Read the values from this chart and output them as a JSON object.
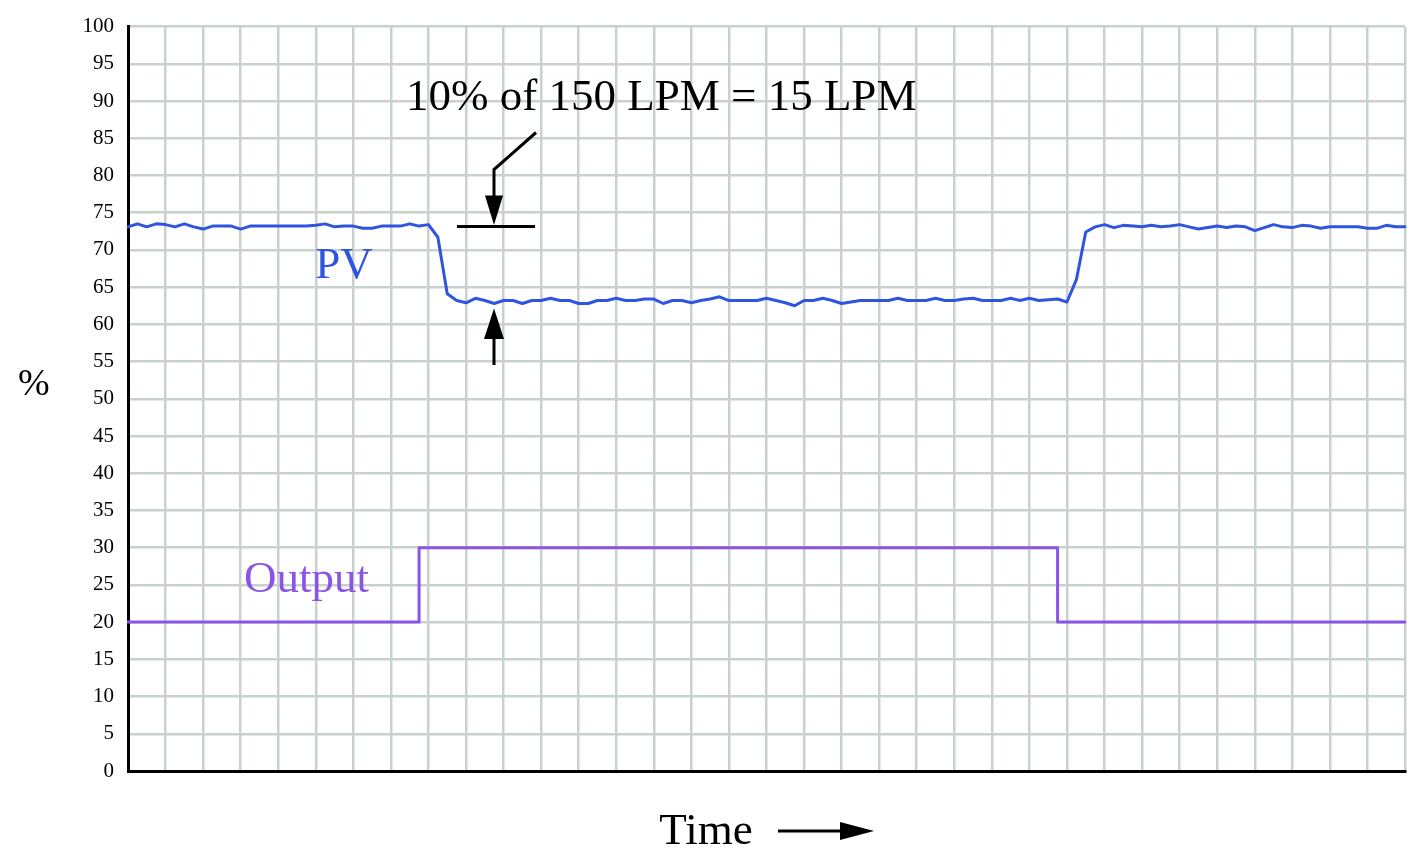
{
  "chart_data": {
    "type": "line",
    "xlabel": "Time",
    "ylabel": "%",
    "ylim": [
      0,
      100
    ],
    "yticks": [
      0,
      5,
      10,
      15,
      20,
      25,
      30,
      35,
      40,
      45,
      50,
      55,
      60,
      65,
      70,
      75,
      80,
      85,
      90,
      95,
      100
    ],
    "grid": true,
    "annotations": [
      "10% of 150 LPM = 15 LPM"
    ],
    "categories": [
      null,
      null,
      null,
      null,
      null,
      null,
      null,
      null,
      null,
      null,
      null,
      null,
      null,
      null,
      null,
      null,
      null,
      null,
      null,
      null,
      null,
      null,
      null,
      null,
      null,
      null,
      null,
      null,
      null,
      null,
      null,
      null,
      null,
      null,
      null,
      null,
      null,
      null,
      null,
      null,
      null,
      null,
      null,
      null,
      null,
      null,
      null,
      null,
      null,
      null,
      null,
      null,
      null,
      null,
      null,
      null,
      null,
      null,
      null,
      null,
      null,
      null,
      null,
      null,
      null,
      null,
      null,
      null,
      null,
      null,
      null,
      null,
      null,
      null,
      null,
      null,
      null,
      null,
      null,
      null,
      null,
      null,
      null,
      null,
      null,
      null,
      null,
      null,
      null,
      null,
      null,
      null,
      null,
      null,
      null,
      null,
      null,
      null,
      null,
      null,
      null,
      null,
      null,
      null,
      null,
      null,
      null,
      null,
      null,
      null,
      null,
      null,
      null,
      null,
      null,
      null,
      null,
      null,
      null,
      null,
      null,
      null,
      null,
      null,
      null,
      null,
      null,
      null,
      null,
      null,
      null,
      null,
      null,
      null,
      null,
      null,
      null
    ],
    "series": [
      {
        "name": "PV",
        "type": "line",
        "color": "#2f55e0",
        "values": [
          73.1,
          73.5,
          73.1,
          73.5,
          73.4,
          73.1,
          73.5,
          73.1,
          72.8,
          73.2,
          73.2,
          73.2,
          72.8,
          73.2,
          73.2,
          73.2,
          73.2,
          73.2,
          73.2,
          73.2,
          73.3,
          73.5,
          73.1,
          73.2,
          73.2,
          72.9,
          72.9,
          73.2,
          73.2,
          73.2,
          73.5,
          73.2,
          73.4,
          71.7,
          64.1,
          63.2,
          62.9,
          63.5,
          63.2,
          62.8,
          63.2,
          63.2,
          62.8,
          63.2,
          63.2,
          63.5,
          63.2,
          63.2,
          62.8,
          62.8,
          63.2,
          63.2,
          63.5,
          63.2,
          63.2,
          63.4,
          63.4,
          62.8,
          63.2,
          63.2,
          62.9,
          63.2,
          63.4,
          63.7,
          63.2,
          63.2,
          63.2,
          63.2,
          63.5,
          63.2,
          62.9,
          62.5,
          63.2,
          63.2,
          63.5,
          63.2,
          62.8,
          63.0,
          63.2,
          63.2,
          63.2,
          63.2,
          63.5,
          63.2,
          63.2,
          63.2,
          63.5,
          63.2,
          63.2,
          63.4,
          63.5,
          63.2,
          63.2,
          63.2,
          63.5,
          63.2,
          63.5,
          63.2,
          63.3,
          63.4,
          63.0,
          66,
          72.4,
          73.1,
          73.4,
          73.0,
          73.3,
          73.2,
          73.1,
          73.3,
          73.1,
          73.2,
          73.4,
          73.1,
          72.8,
          73.0,
          73.2,
          73.0,
          73.2,
          73.1,
          72.6,
          73.0,
          73.4,
          73.1,
          73.0,
          73.3,
          73.2,
          72.9,
          73.1,
          73.1,
          73.1,
          73.1,
          72.9,
          72.9,
          73.3,
          73.1,
          73.1
        ]
      },
      {
        "name": "Output",
        "type": "step",
        "color": "#8a55e6",
        "values": [
          20,
          20,
          20,
          20,
          20,
          20,
          20,
          20,
          20,
          20,
          20,
          20,
          20,
          20,
          20,
          20,
          20,
          20,
          20,
          20,
          20,
          20,
          20,
          20,
          20,
          20,
          20,
          20,
          20,
          20,
          20,
          20,
          30,
          30,
          30,
          30,
          30,
          30,
          30,
          30,
          30,
          30,
          30,
          30,
          30,
          30,
          30,
          30,
          30,
          30,
          30,
          30,
          30,
          30,
          30,
          30,
          30,
          30,
          30,
          30,
          30,
          30,
          30,
          30,
          30,
          30,
          30,
          30,
          30,
          30,
          30,
          30,
          30,
          30,
          30,
          30,
          30,
          30,
          30,
          30,
          30,
          30,
          30,
          30,
          30,
          30,
          30,
          30,
          30,
          30,
          30,
          30,
          30,
          30,
          30,
          30,
          30,
          30,
          30,
          30,
          20,
          20,
          20,
          20,
          20,
          20,
          20,
          20,
          20,
          20,
          20,
          20,
          20,
          20,
          20,
          20,
          20,
          20,
          20,
          20,
          20,
          20,
          20,
          20,
          20,
          20,
          20,
          20,
          20,
          20,
          20,
          20,
          20,
          20,
          20,
          20,
          20
        ]
      }
    ]
  }
}
